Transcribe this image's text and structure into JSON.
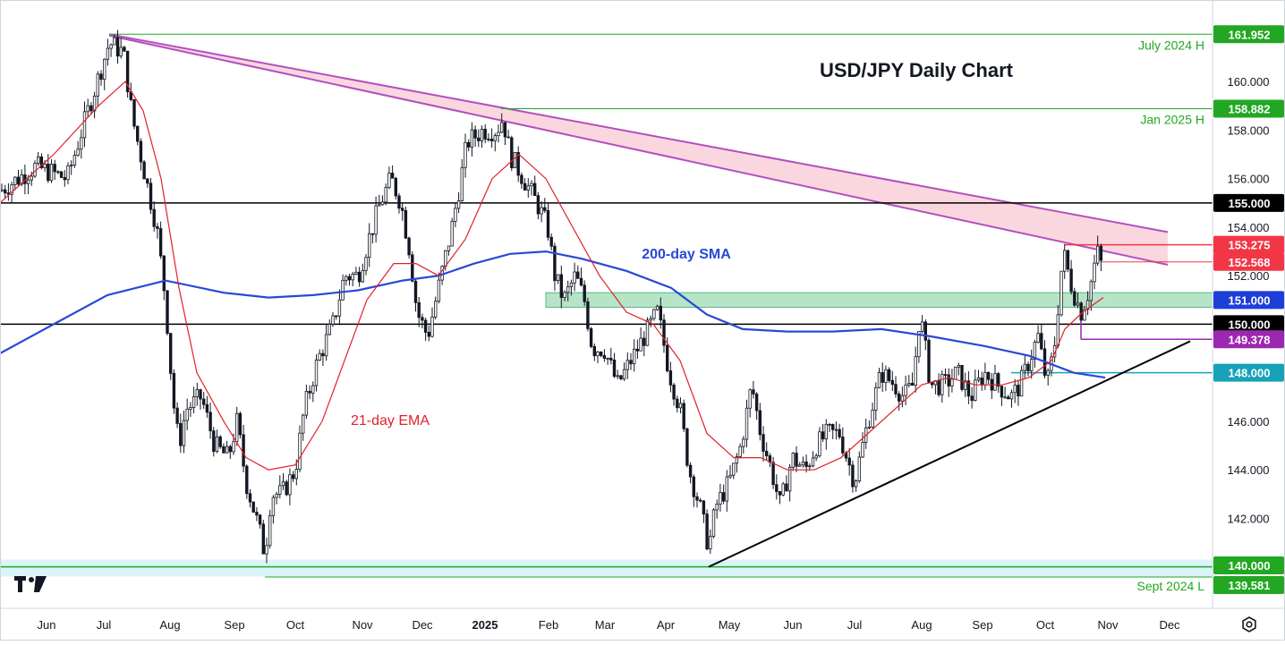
{
  "chart_data": {
    "type": "candlestick",
    "title": "USD/JPY Daily Chart",
    "ylim": [
      138.5,
      163.3
    ],
    "x_labels": [
      "Jun",
      "Jul",
      "Aug",
      "Sep",
      "Oct",
      "Nov",
      "Dec",
      "2025",
      "Feb",
      "Mar",
      "Apr",
      "May",
      "Jun",
      "Jul",
      "Aug",
      "Sep",
      "Oct",
      "Nov",
      "Dec"
    ],
    "y_ticks": [
      "160.000",
      "158.000",
      "156.000",
      "154.000",
      "152.000",
      "146.000",
      "144.000",
      "142.000"
    ],
    "price_levels": [
      {
        "value": 161.952,
        "label": "161.952",
        "note": "July 2024 H",
        "color": "#22a722"
      },
      {
        "value": 158.882,
        "label": "158.882",
        "note": "Jan 2025 H",
        "color": "#22a722"
      },
      {
        "value": 155.0,
        "label": "155.000",
        "note": "",
        "color": "#000000"
      },
      {
        "value": 153.275,
        "label": "153.275",
        "note": "",
        "color": "#f23645"
      },
      {
        "value": 152.568,
        "label": "152.568",
        "note": "",
        "color": "#f23645"
      },
      {
        "value": 151.0,
        "label": "151.000",
        "note": "",
        "color": "#1e3ed8"
      },
      {
        "value": 150.0,
        "label": "150.000",
        "note": "",
        "color": "#000000"
      },
      {
        "value": 149.378,
        "label": "149.378",
        "note": "",
        "color": "#9c27b0"
      },
      {
        "value": 148.0,
        "label": "148.000",
        "note": "",
        "color": "#17a2b8"
      },
      {
        "value": 140.0,
        "label": "140.000",
        "note": "",
        "color": "#22a722"
      },
      {
        "value": 139.581,
        "label": "139.581",
        "note": "Sept 2024 L",
        "color": "#22a722"
      }
    ],
    "indicators": [
      {
        "name": "200-day SMA",
        "color": "#2a48d6"
      },
      {
        "name": "21-day EMA",
        "color": "#e0202a"
      }
    ],
    "price_path": [
      [
        0,
        155.5
      ],
      [
        40,
        156.5
      ],
      [
        75,
        156.0
      ],
      [
        100,
        159.0
      ],
      [
        122,
        161.6
      ],
      [
        138,
        161.2
      ],
      [
        148,
        158.5
      ],
      [
        160,
        156.5
      ],
      [
        175,
        154.0
      ],
      [
        185,
        151.0
      ],
      [
        193,
        147.0
      ],
      [
        200,
        145.0
      ],
      [
        208,
        146.5
      ],
      [
        225,
        147.0
      ],
      [
        240,
        145.0
      ],
      [
        255,
        144.5
      ],
      [
        265,
        146.0
      ],
      [
        275,
        143.5
      ],
      [
        290,
        141.5
      ],
      [
        296,
        140.5
      ],
      [
        303,
        143.0
      ],
      [
        315,
        143.0
      ],
      [
        330,
        144.0
      ],
      [
        340,
        146.5
      ],
      [
        355,
        148.5
      ],
      [
        372,
        150.0
      ],
      [
        385,
        152.0
      ],
      [
        400,
        152.0
      ],
      [
        412,
        153.5
      ],
      [
        425,
        155.0
      ],
      [
        437,
        156.0
      ],
      [
        448,
        155.0
      ],
      [
        458,
        153.0
      ],
      [
        466,
        150.5
      ],
      [
        478,
        149.5
      ],
      [
        490,
        151.5
      ],
      [
        505,
        154.0
      ],
      [
        515,
        156.0
      ],
      [
        522,
        157.5
      ],
      [
        540,
        158.0
      ],
      [
        555,
        158.0
      ],
      [
        562,
        158.5
      ],
      [
        570,
        157.0
      ],
      [
        585,
        156.0
      ],
      [
        600,
        155.0
      ],
      [
        612,
        154.0
      ],
      [
        620,
        152.0
      ],
      [
        630,
        151.0
      ],
      [
        643,
        152.0
      ],
      [
        653,
        151.0
      ],
      [
        662,
        149.0
      ],
      [
        675,
        149.0
      ],
      [
        690,
        147.5
      ],
      [
        705,
        148.5
      ],
      [
        720,
        149.5
      ],
      [
        735,
        150.5
      ],
      [
        748,
        148.0
      ],
      [
        760,
        146.5
      ],
      [
        770,
        144.0
      ],
      [
        782,
        142.5
      ],
      [
        792,
        140.8
      ],
      [
        800,
        142.5
      ],
      [
        815,
        143.5
      ],
      [
        828,
        145.0
      ],
      [
        840,
        147.5
      ],
      [
        850,
        145.5
      ],
      [
        862,
        144.0
      ],
      [
        872,
        142.5
      ],
      [
        885,
        144.5
      ],
      [
        900,
        144.0
      ],
      [
        912,
        145.0
      ],
      [
        925,
        145.5
      ],
      [
        938,
        145.5
      ],
      [
        955,
        143.5
      ],
      [
        970,
        146.0
      ],
      [
        985,
        148.0
      ],
      [
        1000,
        147.5
      ],
      [
        1010,
        147.0
      ],
      [
        1020,
        147.5
      ],
      [
        1028,
        150.5
      ],
      [
        1040,
        147.5
      ],
      [
        1055,
        147.5
      ],
      [
        1070,
        148.0
      ],
      [
        1085,
        147.0
      ],
      [
        1100,
        148.0
      ],
      [
        1115,
        147.5
      ],
      [
        1130,
        147.0
      ],
      [
        1140,
        147.5
      ],
      [
        1150,
        148.5
      ],
      [
        1160,
        149.5
      ],
      [
        1170,
        147.5
      ],
      [
        1178,
        149.0
      ],
      [
        1188,
        153.0
      ],
      [
        1198,
        151.5
      ],
      [
        1208,
        150.5
      ],
      [
        1218,
        151.5
      ],
      [
        1226,
        153.0
      ],
      [
        1233,
        152.2
      ]
    ],
    "sma_path": [
      [
        0,
        148.8
      ],
      [
        60,
        150.0
      ],
      [
        120,
        151.2
      ],
      [
        185,
        151.8
      ],
      [
        250,
        151.3
      ],
      [
        300,
        151.1
      ],
      [
        350,
        151.2
      ],
      [
        400,
        151.4
      ],
      [
        450,
        151.8
      ],
      [
        490,
        152.0
      ],
      [
        530,
        152.5
      ],
      [
        570,
        152.9
      ],
      [
        610,
        153.0
      ],
      [
        650,
        152.7
      ],
      [
        700,
        152.2
      ],
      [
        750,
        151.5
      ],
      [
        790,
        150.4
      ],
      [
        830,
        149.8
      ],
      [
        880,
        149.7
      ],
      [
        930,
        149.7
      ],
      [
        985,
        149.8
      ],
      [
        1040,
        149.5
      ],
      [
        1100,
        149.1
      ],
      [
        1150,
        148.7
      ],
      [
        1200,
        148.0
      ],
      [
        1235,
        147.8
      ]
    ],
    "ema_path": [
      [
        0,
        155.0
      ],
      [
        60,
        157.0
      ],
      [
        110,
        159.0
      ],
      [
        140,
        160.0
      ],
      [
        160,
        158.8
      ],
      [
        180,
        156.0
      ],
      [
        200,
        151.5
      ],
      [
        220,
        148.0
      ],
      [
        250,
        146.0
      ],
      [
        275,
        144.5
      ],
      [
        300,
        144.0
      ],
      [
        330,
        144.2
      ],
      [
        360,
        146.0
      ],
      [
        385,
        148.5
      ],
      [
        410,
        151.0
      ],
      [
        440,
        152.5
      ],
      [
        465,
        152.5
      ],
      [
        490,
        152.0
      ],
      [
        520,
        153.5
      ],
      [
        550,
        156.0
      ],
      [
        580,
        157.0
      ],
      [
        610,
        156.0
      ],
      [
        640,
        154.0
      ],
      [
        670,
        152.0
      ],
      [
        700,
        150.5
      ],
      [
        730,
        150.0
      ],
      [
        760,
        148.5
      ],
      [
        790,
        145.5
      ],
      [
        820,
        144.5
      ],
      [
        850,
        144.5
      ],
      [
        880,
        144.0
      ],
      [
        910,
        144.0
      ],
      [
        940,
        144.5
      ],
      [
        970,
        145.5
      ],
      [
        1000,
        146.5
      ],
      [
        1030,
        147.5
      ],
      [
        1060,
        147.8
      ],
      [
        1090,
        147.5
      ],
      [
        1120,
        147.5
      ],
      [
        1150,
        147.8
      ],
      [
        1175,
        148.5
      ],
      [
        1190,
        149.8
      ],
      [
        1210,
        150.5
      ],
      [
        1233,
        151.1
      ]
    ],
    "annotations": {
      "resistance_channel": [
        [
          122,
          161.952
        ],
        [
          1305,
          153.8
        ],
        [
          1305,
          152.45
        ],
        [
          122,
          161.9
        ]
      ],
      "support_trendline": [
        [
          792,
          140.0
        ],
        [
          1330,
          149.3
        ]
      ],
      "support_zone": [
        150.7,
        151.3
      ],
      "bottom_zone": [
        139.6,
        140.3
      ]
    }
  }
}
